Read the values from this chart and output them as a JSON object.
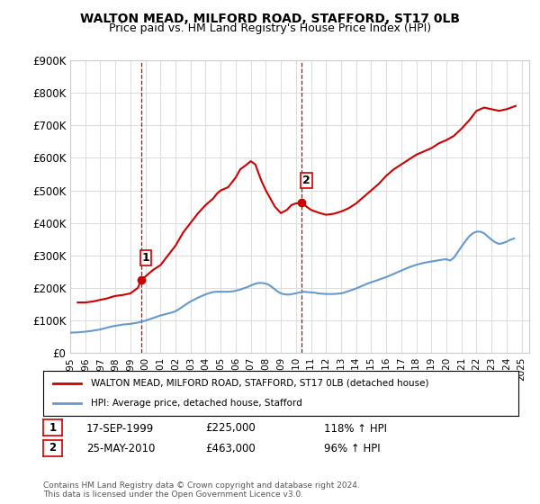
{
  "title": "WALTON MEAD, MILFORD ROAD, STAFFORD, ST17 0LB",
  "subtitle": "Price paid vs. HM Land Registry's House Price Index (HPI)",
  "ylim": [
    0,
    900000
  ],
  "yticks": [
    0,
    100000,
    200000,
    300000,
    400000,
    500000,
    600000,
    700000,
    800000,
    900000
  ],
  "ytick_labels": [
    "£0",
    "£100K",
    "£200K",
    "£300K",
    "£400K",
    "£500K",
    "£600K",
    "£700K",
    "£800K",
    "£900K"
  ],
  "xlim_start": 1995.0,
  "xlim_end": 2025.5,
  "xticks": [
    1995,
    1996,
    1997,
    1998,
    1999,
    2000,
    2001,
    2002,
    2003,
    2004,
    2005,
    2006,
    2007,
    2008,
    2009,
    2010,
    2011,
    2012,
    2013,
    2014,
    2015,
    2016,
    2017,
    2018,
    2019,
    2020,
    2021,
    2022,
    2023,
    2024,
    2025
  ],
  "red_color": "#cc0000",
  "blue_color": "#6699cc",
  "vline_color": "#cc0000",
  "marker1_x": 1999.72,
  "marker1_y": 225000,
  "marker2_x": 2010.39,
  "marker2_y": 463000,
  "legend_label_red": "WALTON MEAD, MILFORD ROAD, STAFFORD, ST17 0LB (detached house)",
  "legend_label_blue": "HPI: Average price, detached house, Stafford",
  "table_row1": [
    "1",
    "17-SEP-1999",
    "£225,000",
    "118% ↑ HPI"
  ],
  "table_row2": [
    "2",
    "25-MAY-2010",
    "£463,000",
    "96% ↑ HPI"
  ],
  "footer": "Contains HM Land Registry data © Crown copyright and database right 2024.\nThis data is licensed under the Open Government Licence v3.0.",
  "background_color": "#ffffff",
  "grid_color": "#dddddd",
  "hpi_data": {
    "years": [
      1995.0,
      1995.25,
      1995.5,
      1995.75,
      1996.0,
      1996.25,
      1996.5,
      1996.75,
      1997.0,
      1997.25,
      1997.5,
      1997.75,
      1998.0,
      1998.25,
      1998.5,
      1998.75,
      1999.0,
      1999.25,
      1999.5,
      1999.75,
      2000.0,
      2000.25,
      2000.5,
      2000.75,
      2001.0,
      2001.25,
      2001.5,
      2001.75,
      2002.0,
      2002.25,
      2002.5,
      2002.75,
      2003.0,
      2003.25,
      2003.5,
      2003.75,
      2004.0,
      2004.25,
      2004.5,
      2004.75,
      2005.0,
      2005.25,
      2005.5,
      2005.75,
      2006.0,
      2006.25,
      2006.5,
      2006.75,
      2007.0,
      2007.25,
      2007.5,
      2007.75,
      2008.0,
      2008.25,
      2008.5,
      2008.75,
      2009.0,
      2009.25,
      2009.5,
      2009.75,
      2010.0,
      2010.25,
      2010.5,
      2010.75,
      2011.0,
      2011.25,
      2011.5,
      2011.75,
      2012.0,
      2012.25,
      2012.5,
      2012.75,
      2013.0,
      2013.25,
      2013.5,
      2013.75,
      2014.0,
      2014.25,
      2014.5,
      2014.75,
      2015.0,
      2015.25,
      2015.5,
      2015.75,
      2016.0,
      2016.25,
      2016.5,
      2016.75,
      2017.0,
      2017.25,
      2017.5,
      2017.75,
      2018.0,
      2018.25,
      2018.5,
      2018.75,
      2019.0,
      2019.25,
      2019.5,
      2019.75,
      2020.0,
      2020.25,
      2020.5,
      2020.75,
      2021.0,
      2021.25,
      2021.5,
      2021.75,
      2022.0,
      2022.25,
      2022.5,
      2022.75,
      2023.0,
      2023.25,
      2023.5,
      2023.75,
      2024.0,
      2024.25,
      2024.5
    ],
    "values": [
      62000,
      62500,
      63000,
      64000,
      65000,
      66500,
      68000,
      70000,
      72000,
      75000,
      78000,
      81000,
      83000,
      85000,
      87000,
      88000,
      89000,
      91000,
      93000,
      96000,
      99000,
      103000,
      107000,
      111000,
      115000,
      118000,
      121000,
      124000,
      128000,
      135000,
      143000,
      151000,
      158000,
      164000,
      170000,
      175000,
      180000,
      184000,
      187000,
      188000,
      188000,
      188000,
      188000,
      189000,
      191000,
      194000,
      198000,
      202000,
      207000,
      212000,
      215000,
      215000,
      213000,
      208000,
      199000,
      190000,
      183000,
      180000,
      179000,
      181000,
      183000,
      186000,
      188000,
      187000,
      186000,
      185000,
      183000,
      182000,
      181000,
      181000,
      181000,
      182000,
      183000,
      186000,
      190000,
      194000,
      198000,
      203000,
      208000,
      213000,
      217000,
      221000,
      225000,
      229000,
      233000,
      238000,
      243000,
      248000,
      253000,
      258000,
      263000,
      267000,
      271000,
      274000,
      277000,
      279000,
      281000,
      283000,
      285000,
      287000,
      288000,
      284000,
      293000,
      310000,
      327000,
      343000,
      358000,
      368000,
      373000,
      373000,
      368000,
      358000,
      348000,
      340000,
      335000,
      338000,
      342000,
      348000,
      352000
    ]
  },
  "price_paid_data": {
    "years": [
      1995.5,
      1996.0,
      1996.5,
      1997.0,
      1997.5,
      1997.75,
      1998.0,
      1998.5,
      1999.0,
      1999.5,
      1999.72,
      2000.0,
      2000.5,
      2001.0,
      2001.5,
      2002.0,
      2002.5,
      2003.0,
      2003.5,
      2004.0,
      2004.5,
      2004.75,
      2005.0,
      2005.5,
      2006.0,
      2006.3,
      2006.6,
      2007.0,
      2007.3,
      2007.5,
      2007.7,
      2008.0,
      2008.3,
      2008.6,
      2009.0,
      2009.4,
      2009.7,
      2010.0,
      2010.39,
      2010.7,
      2011.0,
      2011.3,
      2011.6,
      2012.0,
      2012.5,
      2013.0,
      2013.5,
      2014.0,
      2014.5,
      2015.0,
      2015.5,
      2016.0,
      2016.5,
      2017.0,
      2017.5,
      2018.0,
      2018.5,
      2019.0,
      2019.5,
      2020.0,
      2020.5,
      2021.0,
      2021.5,
      2022.0,
      2022.5,
      2023.0,
      2023.5,
      2024.0,
      2024.3,
      2024.6
    ],
    "values": [
      155000,
      155000,
      158000,
      163000,
      168000,
      172000,
      175000,
      178000,
      183000,
      200000,
      225000,
      235000,
      255000,
      270000,
      300000,
      330000,
      370000,
      400000,
      430000,
      455000,
      475000,
      490000,
      500000,
      510000,
      540000,
      565000,
      575000,
      590000,
      580000,
      555000,
      530000,
      500000,
      475000,
      450000,
      430000,
      440000,
      455000,
      460000,
      463000,
      450000,
      440000,
      435000,
      430000,
      425000,
      428000,
      435000,
      445000,
      460000,
      480000,
      500000,
      520000,
      545000,
      565000,
      580000,
      595000,
      610000,
      620000,
      630000,
      645000,
      655000,
      668000,
      690000,
      715000,
      745000,
      755000,
      750000,
      745000,
      750000,
      755000,
      760000
    ]
  }
}
